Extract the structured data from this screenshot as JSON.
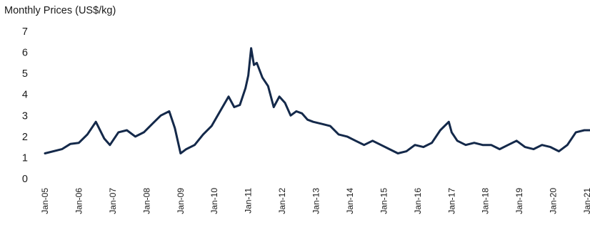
{
  "chart_data": {
    "type": "line",
    "title": "Monthly Prices (US$/kg)",
    "xlabel": "",
    "ylabel": "",
    "ylim": [
      0,
      7
    ],
    "xlim": [
      "2005-01",
      "2021-01"
    ],
    "y_ticks": [
      "0",
      "1",
      "2",
      "3",
      "4",
      "5",
      "6",
      "7"
    ],
    "x_ticks": [
      "Jan-05",
      "Jan-06",
      "Jan-07",
      "Jan-08",
      "Jan-09",
      "Jan-10",
      "Jan-11",
      "Jan-12",
      "Jan-13",
      "Jan-14",
      "Jan-15",
      "Jan-16",
      "Jan-17",
      "Jan-18",
      "Jan-19",
      "Jan-20",
      "Jan-21"
    ],
    "grid": false,
    "legend": "none",
    "line_color": "#14294a",
    "series": [
      {
        "x": [
          "2005-01",
          "2005-07",
          "2005-10",
          "2006-01",
          "2006-04",
          "2006-07",
          "2006-10",
          "2006-12",
          "2007-03",
          "2007-06",
          "2007-09",
          "2007-12",
          "2008-03",
          "2008-06",
          "2008-09",
          "2008-11",
          "2009-01",
          "2009-03",
          "2009-06",
          "2009-09",
          "2009-12",
          "2010-03",
          "2010-06",
          "2010-08",
          "2010-10",
          "2010-12",
          "2011-01",
          "2011-02",
          "2011-03",
          "2011-04",
          "2011-06",
          "2011-08",
          "2011-10",
          "2011-12",
          "2012-02",
          "2012-04",
          "2012-06",
          "2012-08",
          "2012-10",
          "2012-12",
          "2013-03",
          "2013-06",
          "2013-09",
          "2013-12",
          "2014-03",
          "2014-06",
          "2014-09",
          "2014-12",
          "2015-03",
          "2015-06",
          "2015-09",
          "2015-12",
          "2016-03",
          "2016-06",
          "2016-09",
          "2016-12",
          "2017-01",
          "2017-03",
          "2017-06",
          "2017-09",
          "2017-12",
          "2018-03",
          "2018-06",
          "2018-09",
          "2018-12",
          "2019-03",
          "2019-06",
          "2019-09",
          "2019-12",
          "2020-03",
          "2020-06",
          "2020-09",
          "2020-12",
          "2021-02"
        ],
        "values": [
          1.2,
          1.4,
          1.65,
          1.7,
          2.1,
          2.7,
          1.9,
          1.6,
          2.2,
          2.3,
          2.0,
          2.2,
          2.6,
          3.0,
          3.2,
          2.4,
          1.2,
          1.4,
          1.6,
          2.1,
          2.5,
          3.2,
          3.9,
          3.4,
          3.5,
          4.3,
          4.9,
          6.2,
          5.4,
          5.5,
          4.8,
          4.4,
          3.4,
          3.9,
          3.6,
          3.0,
          3.2,
          3.1,
          2.8,
          2.7,
          2.6,
          2.5,
          2.1,
          2.0,
          1.8,
          1.6,
          1.8,
          1.6,
          1.4,
          1.2,
          1.3,
          1.6,
          1.5,
          1.7,
          2.3,
          2.7,
          2.2,
          1.8,
          1.6,
          1.7,
          1.6,
          1.6,
          1.4,
          1.6,
          1.8,
          1.5,
          1.4,
          1.6,
          1.5,
          1.3,
          1.6,
          2.2,
          2.3,
          2.3
        ]
      }
    ]
  }
}
